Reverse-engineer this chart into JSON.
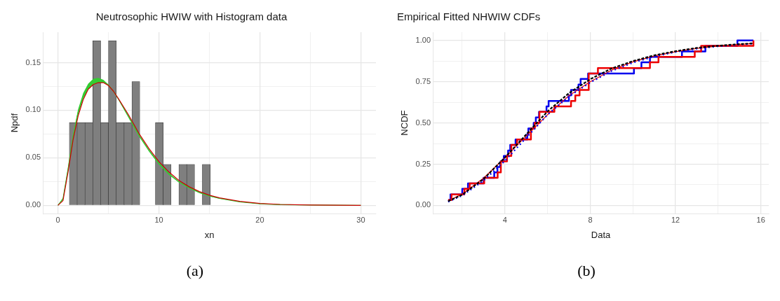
{
  "chart_data": [
    {
      "type": "histogram",
      "title": "Neutrosophic HWIW with Histogram data",
      "xlabel": "xn",
      "ylabel": "Npdf",
      "color": "#7f7f7f",
      "bins": [
        1.13,
        1.905,
        2.68,
        3.455,
        4.23,
        5.005,
        5.78,
        6.555,
        7.33,
        8.105,
        8.88,
        9.655,
        10.43,
        11.205,
        11.98,
        12.755,
        13.53,
        14.305,
        15.08
      ],
      "values": [
        0.087,
        0.087,
        0.087,
        0.173,
        0.087,
        0.173,
        0.087,
        0.087,
        0.13,
        0,
        0,
        0.087,
        0.043,
        0,
        0.043,
        0.043,
        0,
        0.043
      ],
      "series": [
        {
          "type": "line",
          "color": "#33cc33",
          "x": [
            0,
            0.5,
            1,
            1.5,
            2,
            2.5,
            3,
            3.5,
            4,
            4.5,
            5,
            5.5,
            6,
            7,
            8,
            9,
            10,
            11,
            12,
            13,
            14,
            15,
            16,
            18,
            20,
            22,
            25,
            30
          ],
          "values": [
            0,
            0.007,
            0.038,
            0.0725,
            0.098,
            0.115,
            0.125,
            0.13,
            0.1315,
            0.1305,
            0.1265,
            0.12,
            0.1115,
            0.093,
            0.074,
            0.058,
            0.044,
            0.033,
            0.0245,
            0.0185,
            0.0135,
            0.0099,
            0.0073,
            0.0037,
            0.0016,
            0.0008,
            0.0003,
            0
          ],
          "lower": [
            0,
            0.006,
            0.036,
            0.07,
            0.095,
            0.112,
            0.122,
            0.127,
            0.129,
            0.129,
            0.126,
            0.12,
            0.112,
            0.094,
            0.075,
            0.059,
            0.045,
            0.034,
            0.025,
            0.019,
            0.014,
            0.0103,
            0.0076,
            0.004,
            0.0018,
            0.0009,
            0.0003,
            0
          ],
          "upper": [
            0,
            0.008,
            0.04,
            0.075,
            0.101,
            0.118,
            0.128,
            0.133,
            0.134,
            0.132,
            0.127,
            0.12,
            0.111,
            0.092,
            0.073,
            0.057,
            0.043,
            0.032,
            0.024,
            0.018,
            0.013,
            0.0095,
            0.007,
            0.0035,
            0.0015,
            0.0008,
            0.0003,
            0
          ]
        },
        {
          "type": "line",
          "color": "#cc0000",
          "x": [
            0,
            0.5,
            1,
            1.5,
            2,
            2.5,
            3,
            3.5,
            4,
            4.5,
            5,
            5.5,
            6,
            7,
            8,
            9,
            10,
            11,
            12,
            13,
            14,
            15,
            16,
            18,
            20,
            22,
            25,
            30
          ],
          "values": [
            0,
            0.005,
            0.035,
            0.069,
            0.094,
            0.111,
            0.122,
            0.127,
            0.129,
            0.129,
            0.126,
            0.12,
            0.112,
            0.095,
            0.076,
            0.06,
            0.046,
            0.035,
            0.026,
            0.0195,
            0.0145,
            0.0107,
            0.0079,
            0.0042,
            0.002,
            0.001,
            0.0004,
            0
          ]
        }
      ],
      "xlim": [
        -1.5,
        31.5
      ],
      "xticks": [
        0,
        {
          "value": 5,
          "label": null
        },
        10,
        {
          "value": 15,
          "label": null
        },
        20,
        {
          "value": 25,
          "label": null
        },
        30
      ],
      "ylim": [
        -0.0087,
        0.182
      ],
      "yticks": [
        {
          "value": 0,
          "label": "0.00"
        },
        {
          "value": 0.025,
          "label": null
        },
        {
          "value": 0.05,
          "label": "0.05"
        },
        {
          "value": 0.075,
          "label": null
        },
        {
          "value": 0.1,
          "label": "0.10"
        },
        {
          "value": 0.125,
          "label": null
        },
        {
          "value": 0.15,
          "label": "0.15"
        }
      ],
      "grid": true,
      "legend": false,
      "annotations": [
        "(a)"
      ]
    },
    {
      "type": "step",
      "title": "Empirical Fitted NHWIW CDFs",
      "xlabel": "Data",
      "ylabel": "NCDF",
      "series": [
        {
          "type": "step",
          "color": "#0000ee",
          "x": [
            1.34,
            1.45,
            2.0,
            2.27,
            3.0,
            3.5,
            3.65,
            3.8,
            3.95,
            4.15,
            4.25,
            4.5,
            5.05,
            5.1,
            5.35,
            5.45,
            5.6,
            5.95,
            6.05,
            7.0,
            7.1,
            7.45,
            7.55,
            7.9,
            10.05,
            10.4,
            10.8,
            12.3,
            13.4,
            14.9,
            15.65
          ],
          "values": [
            0.033,
            0.067,
            0.1,
            0.133,
            0.167,
            0.2,
            0.233,
            0.267,
            0.3,
            0.333,
            0.367,
            0.4,
            0.433,
            0.467,
            0.5,
            0.533,
            0.567,
            0.6,
            0.633,
            0.667,
            0.7,
            0.733,
            0.767,
            0.8,
            0.833,
            0.867,
            0.9,
            0.933,
            0.967,
            1.0,
            1.0
          ]
        },
        {
          "type": "step",
          "color": "#ee0000",
          "x": [
            1.34,
            1.5,
            2.1,
            2.35,
            3.03,
            3.66,
            3.81,
            4.1,
            4.3,
            4.57,
            5.22,
            5.4,
            5.62,
            6.32,
            7.1,
            7.3,
            7.5,
            7.93,
            8.36,
            10.8,
            11.2,
            12.9,
            13.2,
            15.65
          ],
          "values": [
            0.033,
            0.067,
            0.1,
            0.133,
            0.167,
            0.2,
            0.267,
            0.3,
            0.367,
            0.4,
            0.467,
            0.5,
            0.567,
            0.6,
            0.633,
            0.667,
            0.7,
            0.8,
            0.833,
            0.867,
            0.9,
            0.933,
            0.967,
            1.0
          ]
        },
        {
          "type": "line",
          "color": "#ee0000",
          "x": [
            1.34,
            2,
            3,
            4,
            5,
            6,
            7,
            8,
            9,
            10,
            11,
            12,
            13,
            14,
            15,
            15.65
          ],
          "values": [
            0.027,
            0.07,
            0.165,
            0.29,
            0.42,
            0.55,
            0.665,
            0.75,
            0.82,
            0.87,
            0.905,
            0.932,
            0.952,
            0.966,
            0.976,
            0.981
          ]
        },
        {
          "type": "line",
          "color": "#0000ee",
          "line_style": "dotted",
          "x": [
            1.34,
            2,
            3,
            4,
            5,
            6,
            7,
            8,
            9,
            10,
            11,
            12,
            13,
            14,
            15,
            15.65
          ],
          "values": [
            0.022,
            0.06,
            0.15,
            0.27,
            0.41,
            0.55,
            0.66,
            0.745,
            0.815,
            0.865,
            0.903,
            0.93,
            0.95,
            0.965,
            0.975,
            0.98
          ]
        },
        {
          "type": "line",
          "color": "#000000",
          "line_style": "dashed",
          "x": [
            1.34,
            2,
            3,
            4,
            5,
            6,
            7,
            8,
            9,
            10,
            11,
            12,
            13,
            14,
            15,
            15.65
          ],
          "values": [
            0.025,
            0.065,
            0.16,
            0.29,
            0.43,
            0.57,
            0.68,
            0.765,
            0.83,
            0.875,
            0.91,
            0.935,
            0.955,
            0.968,
            0.978,
            0.983
          ]
        }
      ],
      "xlim": [
        0.62,
        16.37
      ],
      "xticks": [
        {
          "value": 2,
          "label": null
        },
        4,
        {
          "value": 6,
          "label": null
        },
        8,
        {
          "value": 10,
          "label": null
        },
        12,
        {
          "value": 14,
          "label": null
        },
        16
      ],
      "ylim": [
        -0.05,
        1.05
      ],
      "yticks": [
        {
          "value": 0,
          "label": "0.00"
        },
        {
          "value": 0.125,
          "label": null
        },
        {
          "value": 0.25,
          "label": "0.25"
        },
        {
          "value": 0.375,
          "label": null
        },
        {
          "value": 0.5,
          "label": "0.50"
        },
        {
          "value": 0.625,
          "label": null
        },
        {
          "value": 0.75,
          "label": "0.75"
        },
        {
          "value": 0.875,
          "label": null
        },
        {
          "value": 1,
          "label": "1.00"
        }
      ],
      "grid": true,
      "legend": false,
      "annotations": [
        "(b)"
      ]
    }
  ]
}
